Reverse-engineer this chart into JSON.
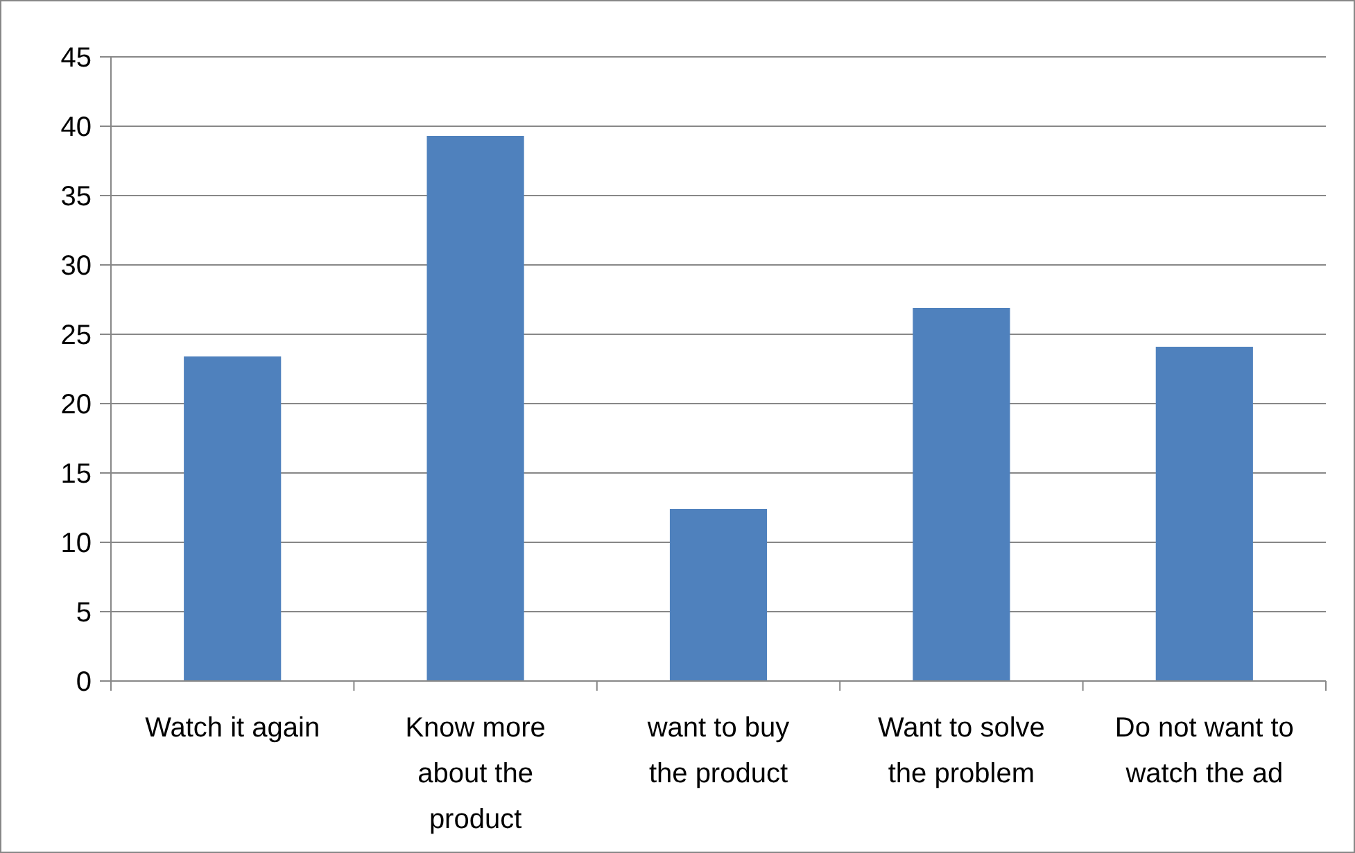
{
  "chart_data": {
    "type": "bar",
    "categories": [
      "Watch it again",
      "Know more about the product",
      "want to buy the product",
      "Want to solve the problem",
      "Do not want to watch the ad"
    ],
    "values": [
      23.4,
      39.3,
      12.4,
      26.9,
      24.1
    ],
    "color": "#4f81bd",
    "ylim": [
      0,
      45
    ],
    "yticks": [
      0,
      5,
      10,
      15,
      20,
      25,
      30,
      35,
      40,
      45
    ],
    "grid": "y"
  }
}
